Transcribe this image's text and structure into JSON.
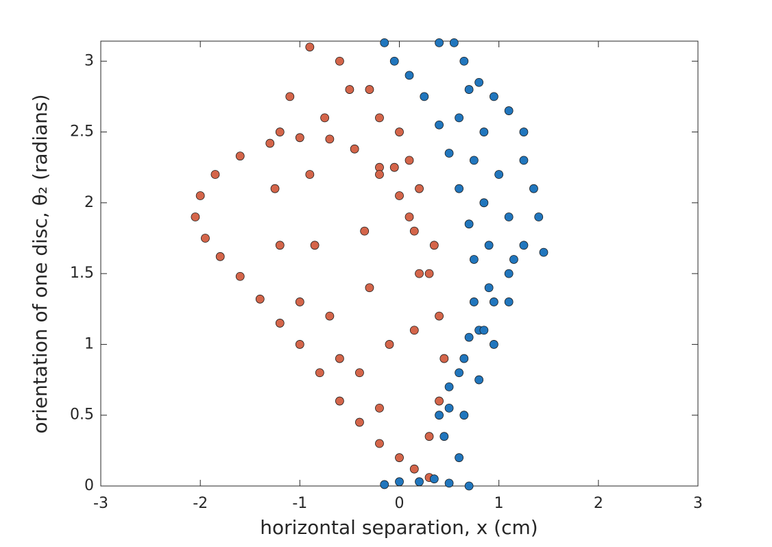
{
  "chart_data": {
    "type": "scatter",
    "xlabel": "horizontal separation, x (cm)",
    "ylabel": "orientation of one disc, θ₂ (radians)",
    "xlim": [
      -3,
      3
    ],
    "ylim": [
      0,
      3.1416
    ],
    "xticks": [
      -3,
      -2,
      -1,
      0,
      1,
      2,
      3
    ],
    "yticks": [
      0,
      0.5,
      1,
      1.5,
      2,
      2.5,
      3
    ],
    "grid": false,
    "series": [
      {
        "color": "#d4654a",
        "x": [
          0.3,
          0.15,
          0,
          -0.2,
          -0.4,
          -0.6,
          -0.8,
          -1.0,
          -1.2,
          -1.4,
          -1.6,
          -1.8,
          -1.95,
          -2.05,
          -2.0,
          -1.85,
          -1.6,
          -1.3,
          -1.0,
          -0.7,
          -0.45,
          -0.2,
          0.0,
          0.15,
          0.3,
          0.4,
          0.45,
          0.4,
          0.3,
          -0.2,
          -0.6,
          -1.0,
          -1.2,
          -1.25,
          -1.2,
          -1.1,
          -0.9,
          -0.6,
          -0.3,
          0,
          0.2,
          0.35,
          -0.4,
          -0.7,
          -0.85,
          -0.9,
          -0.75,
          -0.5,
          -0.2,
          0.1,
          -0.1,
          -0.3,
          -0.35,
          -0.2,
          -0.05,
          0.1,
          0.2,
          0.15
        ],
        "values": [
          0.06,
          0.12,
          0.2,
          0.3,
          0.45,
          0.6,
          0.8,
          1.0,
          1.15,
          1.32,
          1.48,
          1.62,
          1.75,
          1.9,
          2.05,
          2.2,
          2.33,
          2.42,
          2.46,
          2.45,
          2.38,
          2.25,
          2.05,
          1.8,
          1.5,
          1.2,
          0.9,
          0.6,
          0.35,
          0.55,
          0.9,
          1.3,
          1.7,
          2.1,
          2.5,
          2.75,
          3.1,
          3.0,
          2.8,
          2.5,
          2.1,
          1.7,
          0.8,
          1.2,
          1.7,
          2.2,
          2.6,
          2.8,
          2.6,
          2.3,
          1.0,
          1.4,
          1.8,
          2.2,
          2.25,
          1.9,
          1.5,
          1.1
        ]
      },
      {
        "color": "#2176bd",
        "x": [
          -0.15,
          0,
          0.2,
          0.35,
          0.5,
          0.7,
          0.6,
          0.45,
          0.4,
          0.5,
          0.65,
          0.8,
          0.95,
          1.1,
          1.25,
          1.4,
          1.45,
          1.35,
          1.25,
          1.25,
          1.1,
          0.95,
          0.8,
          0.65,
          0.55,
          0.4,
          -0.15,
          -0.05,
          0.1,
          0.25,
          0.4,
          0.5,
          0.6,
          0.7,
          0.75,
          0.75,
          0.7,
          0.6,
          0.5,
          0.7,
          0.85,
          1.0,
          1.1,
          1.15,
          1.1,
          0.95,
          0.8,
          0.65,
          0.6,
          0.75,
          0.85,
          0.9,
          0.9,
          0.85
        ],
        "values": [
          0.01,
          0.03,
          0.03,
          0.05,
          0.02,
          0.0,
          0.2,
          0.35,
          0.5,
          0.7,
          0.9,
          1.1,
          1.3,
          1.5,
          1.7,
          1.9,
          1.65,
          2.1,
          2.3,
          2.5,
          2.65,
          2.75,
          2.85,
          3.0,
          3.13,
          3.13,
          3.13,
          3.0,
          2.9,
          2.75,
          2.55,
          2.35,
          2.1,
          1.85,
          1.6,
          1.3,
          1.05,
          0.8,
          0.55,
          2.8,
          2.5,
          2.2,
          1.9,
          1.6,
          1.3,
          1.0,
          0.75,
          0.5,
          2.6,
          2.3,
          2.0,
          1.7,
          1.4,
          1.1
        ]
      }
    ]
  }
}
